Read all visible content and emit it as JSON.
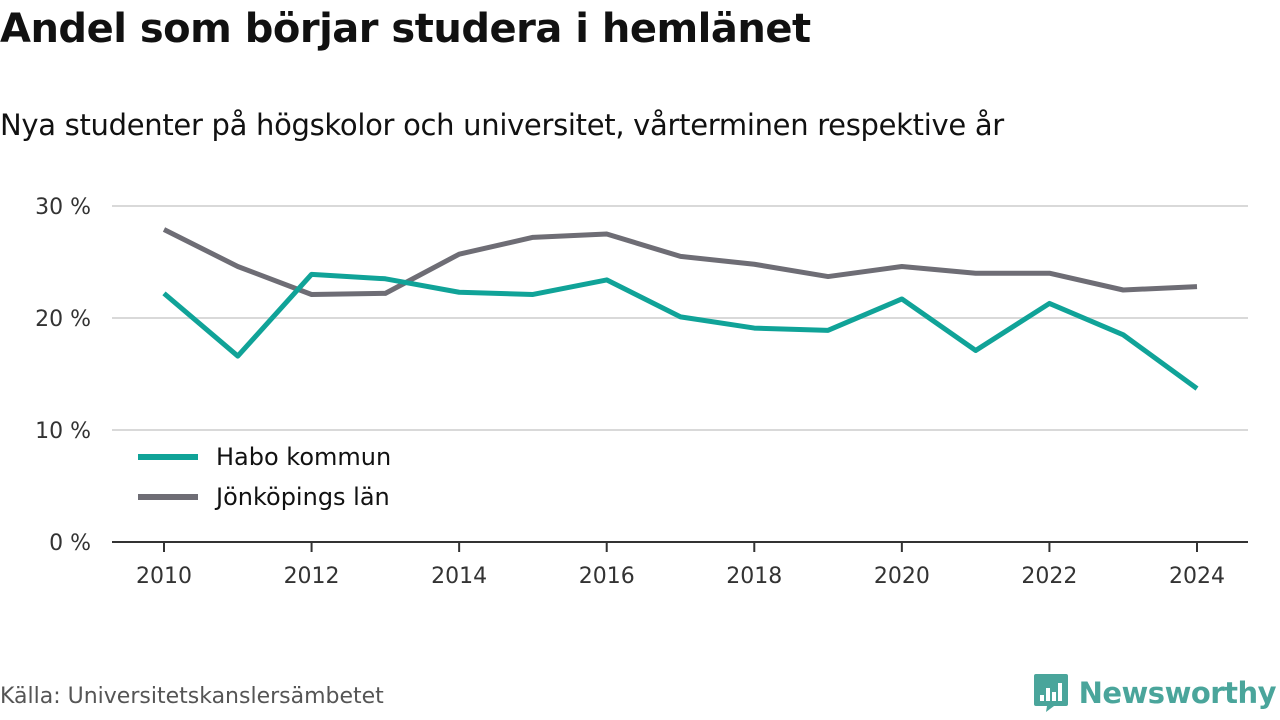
{
  "title": "Andel som börjar studera i hemlänet",
  "subtitle": "Nya studenter på högskolor och universitet, vårterminen respektive år",
  "source": "Källa: Universitetskanslersämbetet",
  "brand": {
    "name": "Newsworthy",
    "color": "#4aa59b",
    "logo": "bar-chart-speech-bubble-icon"
  },
  "chart_data": {
    "type": "line",
    "title": "Andel som börjar studera i hemlänet",
    "subtitle": "Nya studenter på högskolor och universitet, vårterminen respektive år",
    "x": [
      2010,
      2011,
      2012,
      2013,
      2014,
      2015,
      2016,
      2017,
      2018,
      2019,
      2020,
      2021,
      2022,
      2023,
      2024
    ],
    "x_ticks": [
      "2010",
      "2012",
      "2014",
      "2016",
      "2018",
      "2020",
      "2022",
      "2024"
    ],
    "y_ticks": [
      "0 %",
      "10 %",
      "20 %",
      "30 %"
    ],
    "y_tick_values": [
      0,
      10,
      20,
      30
    ],
    "ylim": [
      0,
      30
    ],
    "unit": "%",
    "grid": true,
    "legend_position": "bottom-left",
    "series": [
      {
        "name": "Habo kommun",
        "color": "#10a398",
        "values": [
          22.2,
          16.6,
          23.9,
          23.5,
          22.3,
          22.1,
          23.4,
          20.1,
          19.1,
          18.9,
          21.7,
          17.1,
          21.3,
          18.5,
          13.7
        ]
      },
      {
        "name": "Jönköpings län",
        "color": "#6e6d75",
        "values": [
          27.9,
          24.6,
          22.1,
          22.2,
          25.7,
          27.2,
          27.5,
          25.5,
          24.8,
          23.7,
          24.6,
          24.0,
          24.0,
          22.5,
          22.8
        ]
      }
    ]
  }
}
